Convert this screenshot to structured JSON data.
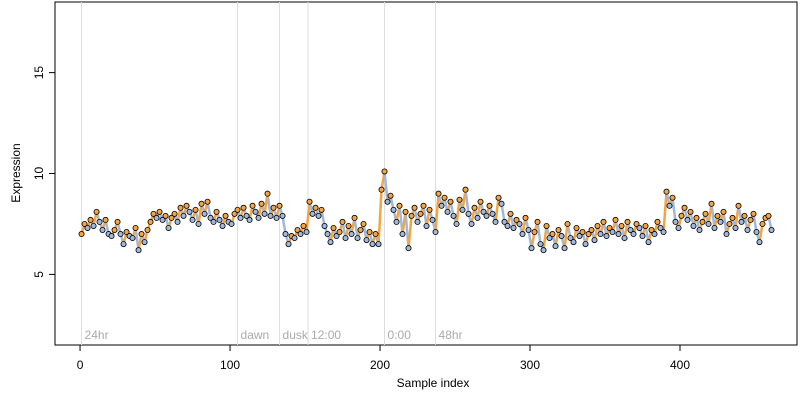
{
  "chart_data": {
    "type": "scatter",
    "x_label": "Sample index",
    "y_label": "Expression",
    "xlim": [
      -16.7,
      478
    ],
    "ylim": [
      1.5,
      18.5
    ],
    "xticks": [
      0,
      100,
      200,
      300,
      400
    ],
    "yticks": [
      5,
      10,
      15
    ],
    "up_color": "#f5a442",
    "down_color": "#9fb8db",
    "marker_edge": "#000000",
    "guide_color": "#dddddd",
    "annotations": [
      {
        "x": 1,
        "text": "24hr"
      },
      {
        "x": 105,
        "text": "dawn"
      },
      {
        "x": 133,
        "text": "dusk"
      },
      {
        "x": 152,
        "text": "12:00"
      },
      {
        "x": 203,
        "text": "0:00"
      },
      {
        "x": 237,
        "text": "48hr"
      }
    ],
    "annotation_y": 2,
    "series": [
      {
        "x": [
          1,
          3,
          5,
          7,
          9,
          11,
          13,
          15,
          17,
          19,
          21,
          23,
          25,
          27,
          29,
          31,
          33,
          35,
          37,
          39,
          41,
          43,
          45,
          47,
          49,
          51,
          53,
          55,
          57,
          59,
          61,
          63,
          65,
          67,
          69,
          71,
          73,
          75,
          77,
          79,
          81,
          83,
          85,
          87,
          89,
          91,
          93,
          95,
          97,
          99,
          101,
          103,
          105,
          107,
          109,
          111,
          113,
          115,
          117,
          119,
          121,
          123,
          125,
          127,
          129,
          131,
          133,
          135,
          137,
          139,
          141,
          143,
          145,
          147,
          149,
          151,
          153,
          155,
          157,
          159,
          161,
          163,
          165,
          167,
          169,
          171,
          173,
          175,
          177,
          179,
          181,
          183,
          185,
          187,
          189,
          191,
          193,
          195,
          197,
          199,
          201,
          203,
          205,
          207,
          209,
          211,
          213,
          215,
          217,
          219,
          221,
          223,
          225,
          227,
          229,
          231,
          233,
          235,
          237,
          239,
          241,
          243,
          245,
          247,
          249,
          251,
          253,
          255,
          257,
          259,
          261,
          263,
          265,
          267,
          269,
          271,
          273,
          275,
          277,
          279,
          281,
          283,
          285,
          287,
          289,
          291,
          293,
          295,
          297,
          299,
          301,
          303,
          305,
          307,
          309,
          311,
          313,
          315,
          317,
          319,
          321,
          323,
          325,
          327,
          329,
          331,
          333,
          335,
          337,
          339,
          341,
          343,
          345,
          347,
          349,
          351,
          353,
          355,
          357,
          359,
          361,
          363,
          365,
          367,
          369,
          371,
          373,
          375,
          377,
          379,
          381,
          383,
          385,
          387,
          389,
          391,
          393,
          395,
          397,
          399,
          401,
          403,
          405,
          407,
          409,
          411,
          413,
          415,
          417,
          419,
          421,
          423,
          425,
          427,
          429,
          431,
          433,
          435,
          437,
          439,
          441,
          443,
          445,
          447,
          449,
          451,
          453,
          455,
          457,
          459,
          461
        ],
        "values": [
          7.0,
          7.5,
          7.3,
          7.7,
          7.4,
          8.1,
          7.6,
          7.2,
          7.7,
          7.0,
          6.9,
          7.2,
          7.6,
          7.0,
          6.5,
          7.1,
          6.9,
          6.8,
          7.3,
          6.2,
          7.0,
          6.6,
          7.2,
          7.6,
          8.0,
          7.8,
          8.1,
          7.7,
          7.9,
          7.3,
          7.8,
          8.0,
          7.6,
          8.3,
          7.9,
          8.4,
          8.1,
          7.7,
          8.2,
          7.5,
          8.5,
          8.0,
          8.6,
          7.8,
          7.6,
          8.1,
          7.7,
          7.4,
          7.9,
          7.6,
          7.5,
          8.0,
          8.2,
          7.8,
          8.3,
          7.9,
          7.7,
          8.4,
          8.1,
          7.8,
          8.5,
          8.0,
          9.0,
          7.9,
          8.3,
          7.8,
          8.4,
          7.9,
          7.0,
          6.5,
          6.9,
          6.8,
          7.2,
          7.0,
          7.4,
          7.1,
          8.6,
          8.0,
          8.3,
          7.9,
          8.2,
          7.4,
          7.0,
          6.6,
          7.3,
          6.9,
          7.1,
          7.6,
          6.8,
          7.4,
          7.0,
          7.8,
          6.8,
          7.2,
          7.5,
          6.7,
          7.1,
          6.5,
          7.0,
          6.5,
          9.2,
          10.1,
          8.6,
          8.9,
          8.2,
          7.6,
          8.4,
          7.0,
          8.1,
          6.3,
          7.9,
          8.3,
          7.6,
          8.0,
          8.4,
          7.4,
          8.2,
          7.7,
          7.1,
          9.0,
          8.4,
          8.8,
          8.1,
          8.6,
          7.9,
          7.5,
          8.7,
          8.2,
          9.2,
          8.0,
          7.5,
          8.3,
          7.8,
          8.6,
          8.1,
          7.9,
          8.4,
          8.0,
          7.6,
          8.8,
          8.5,
          7.6,
          7.4,
          8.0,
          7.3,
          7.7,
          7.5,
          7.0,
          7.8,
          7.2,
          6.3,
          7.1,
          7.6,
          6.5,
          6.2,
          7.4,
          6.8,
          7.0,
          6.4,
          7.2,
          6.9,
          6.3,
          7.5,
          6.8,
          6.6,
          7.3,
          6.9,
          7.1,
          6.5,
          7.0,
          7.2,
          6.7,
          7.4,
          7.0,
          7.6,
          6.9,
          7.3,
          7.1,
          7.7,
          7.0,
          7.4,
          6.8,
          7.6,
          7.2,
          7.0,
          7.5,
          7.3,
          6.9,
          7.4,
          6.6,
          7.2,
          7.0,
          7.6,
          7.3,
          7.1,
          9.1,
          8.4,
          8.8,
          7.6,
          7.3,
          7.9,
          8.3,
          7.7,
          8.1,
          7.4,
          7.8,
          7.2,
          7.6,
          8.0,
          7.5,
          8.5,
          7.3,
          7.9,
          7.6,
          8.1,
          7.0,
          7.5,
          7.8,
          7.3,
          8.4,
          7.6,
          7.9,
          7.2,
          7.7,
          8.0,
          7.1,
          6.6,
          7.5,
          7.8,
          7.9,
          7.2
        ]
      }
    ]
  }
}
